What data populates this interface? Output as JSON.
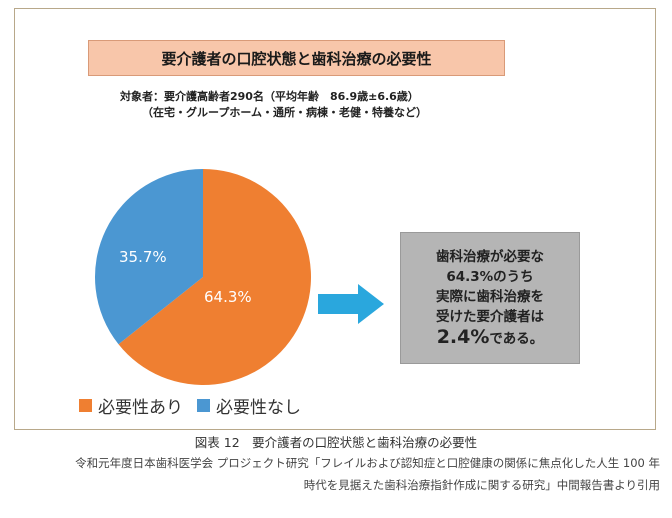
{
  "chart_data": {
    "type": "pie",
    "title": "要介護者の口腔状態と歯科治療の必要性",
    "subtitle_line1": "対象者：要介護高齢者290名（平均年齢　86.9歳±6.6歳）",
    "subtitle_line2": "（在宅・グループホーム・通所・病棟・老健・特養など）",
    "slices": [
      {
        "name": "必要性あり",
        "value": 64.3,
        "label": "64.3%",
        "color": "#ef7f31"
      },
      {
        "name": "必要性なし",
        "value": 35.7,
        "label": "35.7%",
        "color": "#4b97d2"
      }
    ],
    "legend_placement": "bottom-left"
  },
  "callout": {
    "line1": "歯科治療が必要な",
    "line2": "64.3%のうち",
    "line3": "実際に歯科治療を",
    "line4": "受けた要介護者は",
    "value": "2.4%",
    "tail": "である。"
  },
  "caption": "図表 12　要介護者の口腔状態と歯科治療の必要性",
  "source_line1": "令和元年度日本歯科医学会 プロジェクト研究「フレイルおよび認知症と口腔健康の関係に焦点化した人生 100 年",
  "source_line2": "時代を見据えた歯科治療指針作成に関する研究」中間報告書より引用",
  "colors": {
    "title_bg": "#f8c6aa",
    "callout_bg": "#b5b5b5",
    "arrow": "#2aa7dd"
  },
  "icons": {
    "arrow": "right-arrow-icon"
  }
}
